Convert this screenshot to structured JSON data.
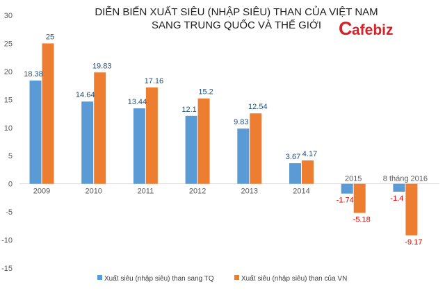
{
  "chart_data": {
    "type": "bar",
    "title": [
      "DIỄN BIẾN XUẤT SIÊU (NHẬP SIÊU) THAN CỦA VIỆT NAM",
      "SANG TRUNG QUỐC VÀ THẾ GIỚI"
    ],
    "categories": [
      "2009",
      "2010",
      "2011",
      "2012",
      "2013",
      "2014",
      "2015",
      "8 tháng 2016"
    ],
    "series": [
      {
        "name": "Xuất siêu (nhập siêu) than sang TQ",
        "color": "#5b9bd5",
        "values": [
          18.38,
          14.64,
          13.44,
          12.1,
          9.83,
          3.67,
          -1.74,
          -1.4
        ],
        "labels": [
          "18.38",
          "14.64",
          "13.44",
          "12.1",
          "9.83",
          "3.67",
          "-1.74",
          "-1.4"
        ]
      },
      {
        "name": "Xuất siêu (nhập siêu) than của VN",
        "color": "#ed7d31",
        "values": [
          25,
          19.83,
          17.16,
          15.2,
          12.54,
          4.17,
          -5.18,
          -9.17
        ],
        "labels": [
          "25",
          "19.83",
          "17.16",
          "15.2",
          "12.54",
          "4.17",
          "-5.18",
          "-9.17"
        ]
      }
    ],
    "ylim": [
      -15,
      30
    ],
    "yticks": [
      "-15",
      "-10",
      "-5",
      "0",
      "5",
      "10",
      "15",
      "20",
      "25",
      "30"
    ],
    "xlabel": "",
    "ylabel": "",
    "grid": false,
    "legend": "bottom",
    "label_color_positive": "#1f4e79",
    "label_color_negative": "#e00000"
  },
  "logo": {
    "first_letter": "C",
    "rest": "afebiz",
    "color": "#d62027"
  }
}
